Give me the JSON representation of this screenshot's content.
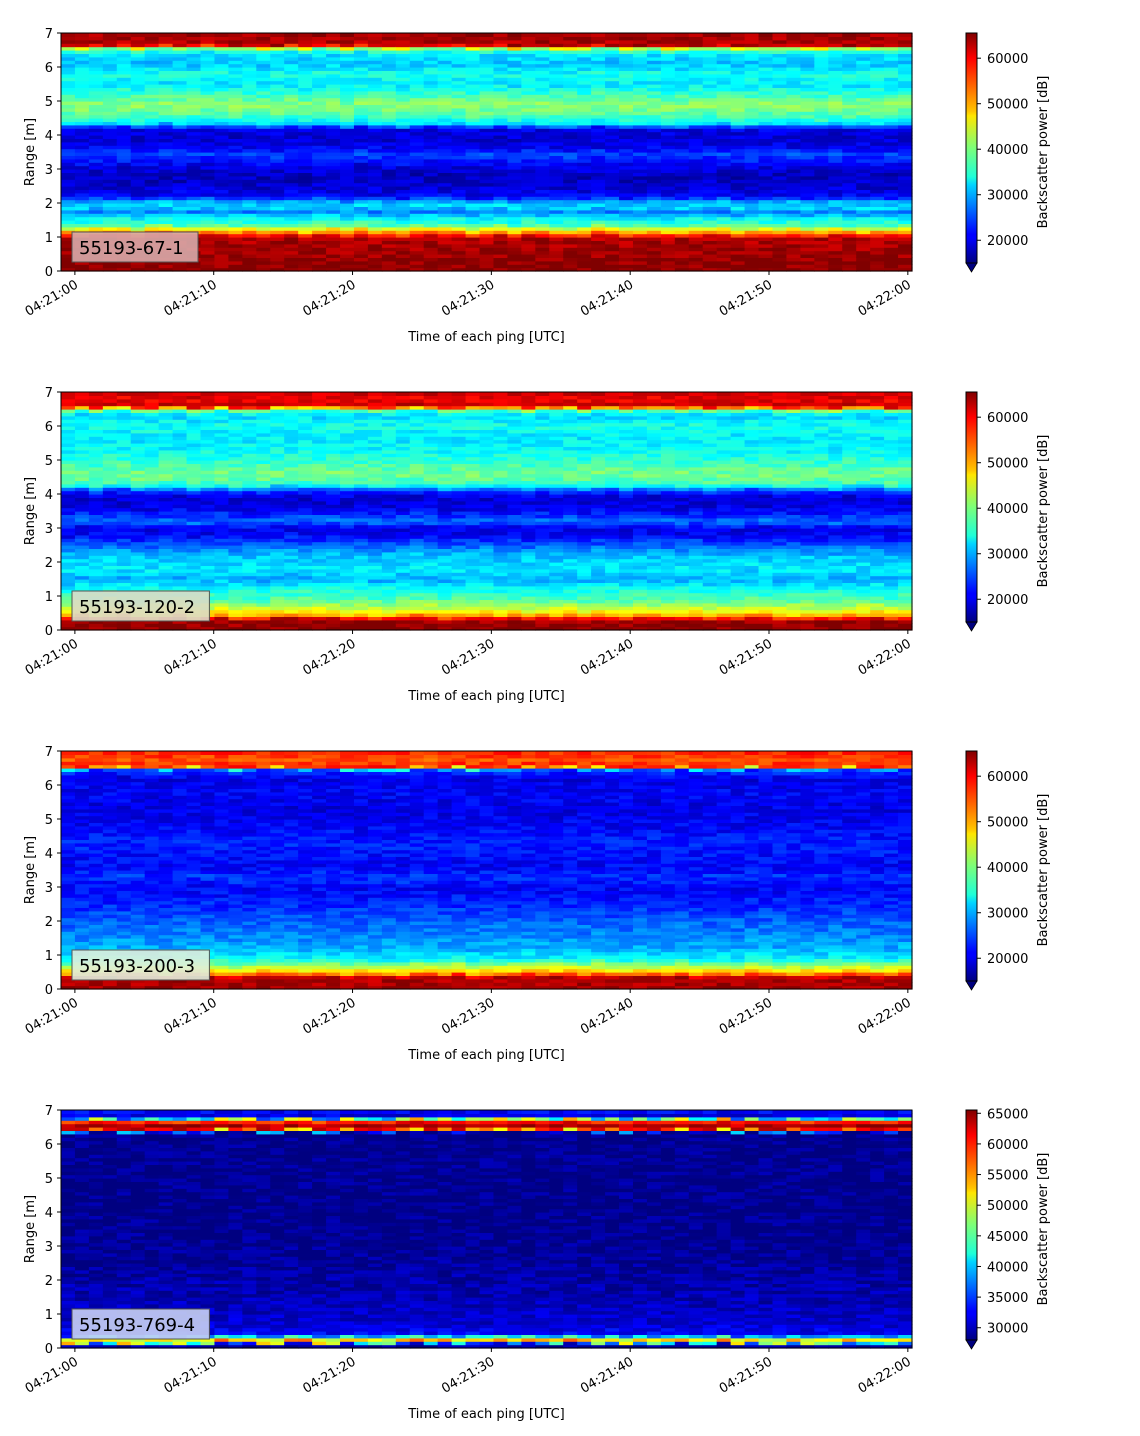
{
  "figure": {
    "xlabel": "Time of each ping [UTC]",
    "ylabel": "Range [m]",
    "cbar_label": "Backscatter power [dB]",
    "xtick_labels": [
      "04:21:00",
      "04:21:10",
      "04:21:20",
      "04:21:30",
      "04:21:40",
      "04:21:50",
      "04:22:00"
    ]
  },
  "chart_data": [
    {
      "type": "heatmap",
      "annotation": "55193-67-1",
      "annotation_bg": "#d7aaaa",
      "x_range": [
        "04:20:59",
        "04:22:00.3"
      ],
      "xticks": [
        0,
        10,
        20,
        30,
        40,
        50,
        60
      ],
      "ylim": [
        0,
        7
      ],
      "yticks": [
        0,
        1,
        2,
        3,
        4,
        5,
        6,
        7
      ],
      "color_range": [
        15000,
        65535
      ],
      "cbar_ticks": [
        20000,
        30000,
        40000,
        50000,
        60000
      ],
      "cbar_tick_labels": [
        "20000",
        "30000",
        "40000",
        "50000",
        "60000"
      ],
      "colormap": "jet",
      "colorbar_extend": "min",
      "profile": [
        [
          0.0,
          65000
        ],
        [
          0.2,
          65000
        ],
        [
          1.0,
          63000
        ],
        [
          1.15,
          52000
        ],
        [
          1.35,
          38000
        ],
        [
          1.6,
          33000
        ],
        [
          1.75,
          27000
        ],
        [
          1.9,
          33000
        ],
        [
          2.05,
          30000
        ],
        [
          2.2,
          21000
        ],
        [
          2.5,
          19000
        ],
        [
          2.8,
          18000
        ],
        [
          3.1,
          20000
        ],
        [
          3.3,
          23000
        ],
        [
          3.45,
          25000
        ],
        [
          3.6,
          21000
        ],
        [
          3.9,
          19000
        ],
        [
          4.2,
          20000
        ],
        [
          4.35,
          33000
        ],
        [
          4.6,
          38000
        ],
        [
          4.9,
          41000
        ],
        [
          5.2,
          37000
        ],
        [
          5.5,
          33000
        ],
        [
          5.8,
          35000
        ],
        [
          6.1,
          31000
        ],
        [
          6.4,
          33000
        ],
        [
          6.55,
          40000
        ],
        [
          6.65,
          63000
        ],
        [
          7.0,
          64000
        ]
      ]
    },
    {
      "type": "heatmap",
      "annotation": "55193-120-2",
      "annotation_bg": "#dcdcc8",
      "x_range": [
        "04:20:59",
        "04:22:00.3"
      ],
      "xticks": [
        0,
        10,
        20,
        30,
        40,
        50,
        60
      ],
      "ylim": [
        0,
        7
      ],
      "yticks": [
        0,
        1,
        2,
        3,
        4,
        5,
        6,
        7
      ],
      "color_range": [
        15000,
        65535
      ],
      "cbar_ticks": [
        20000,
        30000,
        40000,
        50000,
        60000
      ],
      "cbar_tick_labels": [
        "20000",
        "30000",
        "40000",
        "50000",
        "60000"
      ],
      "colormap": "jet",
      "colorbar_extend": "min",
      "profile": [
        [
          0.0,
          65000
        ],
        [
          0.3,
          64000
        ],
        [
          0.45,
          50000
        ],
        [
          0.65,
          44000
        ],
        [
          0.9,
          38000
        ],
        [
          1.2,
          35000
        ],
        [
          1.5,
          30000
        ],
        [
          1.8,
          33000
        ],
        [
          2.2,
          31000
        ],
        [
          2.5,
          26000
        ],
        [
          2.8,
          21000
        ],
        [
          3.0,
          20000
        ],
        [
          3.2,
          27000
        ],
        [
          3.35,
          24000
        ],
        [
          3.6,
          20000
        ],
        [
          3.9,
          19000
        ],
        [
          4.1,
          24000
        ],
        [
          4.3,
          37000
        ],
        [
          4.6,
          40000
        ],
        [
          4.9,
          37000
        ],
        [
          5.3,
          34000
        ],
        [
          5.7,
          33000
        ],
        [
          6.0,
          35000
        ],
        [
          6.3,
          32000
        ],
        [
          6.45,
          36000
        ],
        [
          6.6,
          62000
        ],
        [
          6.8,
          60000
        ],
        [
          7.0,
          62000
        ]
      ]
    },
    {
      "type": "heatmap",
      "annotation": "55193-200-3",
      "annotation_bg": "#dfeedd",
      "x_range": [
        "04:20:59",
        "04:22:00.3"
      ],
      "xticks": [
        0,
        10,
        20,
        30,
        40,
        50,
        60
      ],
      "ylim": [
        0,
        7
      ],
      "yticks": [
        0,
        1,
        2,
        3,
        4,
        5,
        6,
        7
      ],
      "color_range": [
        15000,
        65535
      ],
      "cbar_ticks": [
        20000,
        30000,
        40000,
        50000,
        60000
      ],
      "cbar_tick_labels": [
        "20000",
        "30000",
        "40000",
        "50000",
        "60000"
      ],
      "colormap": "jet",
      "colorbar_extend": "min",
      "profile": [
        [
          0.0,
          64000
        ],
        [
          0.35,
          63000
        ],
        [
          0.5,
          50000
        ],
        [
          0.7,
          42000
        ],
        [
          0.9,
          34000
        ],
        [
          1.2,
          30000
        ],
        [
          1.6,
          28000
        ],
        [
          2.0,
          26000
        ],
        [
          2.5,
          23000
        ],
        [
          3.0,
          21000
        ],
        [
          3.3,
          24000
        ],
        [
          3.6,
          21000
        ],
        [
          4.0,
          22000
        ],
        [
          4.3,
          23000
        ],
        [
          4.8,
          21000
        ],
        [
          5.3,
          20000
        ],
        [
          5.8,
          21000
        ],
        [
          6.2,
          20000
        ],
        [
          6.45,
          24000
        ],
        [
          6.55,
          58000
        ],
        [
          6.75,
          55000
        ],
        [
          7.0,
          58000
        ]
      ]
    },
    {
      "type": "heatmap",
      "annotation": "55193-769-4",
      "annotation_bg": "#c8d0f2",
      "x_range": [
        "04:20:59",
        "04:22:00.3"
      ],
      "xticks": [
        0,
        10,
        20,
        30,
        40,
        50,
        60
      ],
      "ylim": [
        0,
        7
      ],
      "yticks": [
        0,
        1,
        2,
        3,
        4,
        5,
        6,
        7
      ],
      "color_range": [
        28000,
        65535
      ],
      "cbar_ticks": [
        30000,
        35000,
        40000,
        45000,
        50000,
        55000,
        60000,
        65000
      ],
      "cbar_tick_labels": [
        "30000",
        "35000",
        "40000",
        "45000",
        "50000",
        "55000",
        "60000",
        "65000"
      ],
      "colormap": "jet",
      "colorbar_extend": "min",
      "profile": [
        [
          0.0,
          28500
        ],
        [
          0.12,
          30000
        ],
        [
          0.2,
          58000
        ],
        [
          0.3,
          47000
        ],
        [
          0.4,
          33000
        ],
        [
          0.7,
          31000
        ],
        [
          1.0,
          30500
        ],
        [
          1.5,
          30000
        ],
        [
          2.0,
          29500
        ],
        [
          2.6,
          28800
        ],
        [
          3.5,
          28500
        ],
        [
          6.35,
          28500
        ],
        [
          6.45,
          62000
        ],
        [
          6.55,
          64500
        ],
        [
          6.7,
          58000
        ],
        [
          6.8,
          31000
        ],
        [
          7.0,
          33000
        ]
      ]
    }
  ]
}
